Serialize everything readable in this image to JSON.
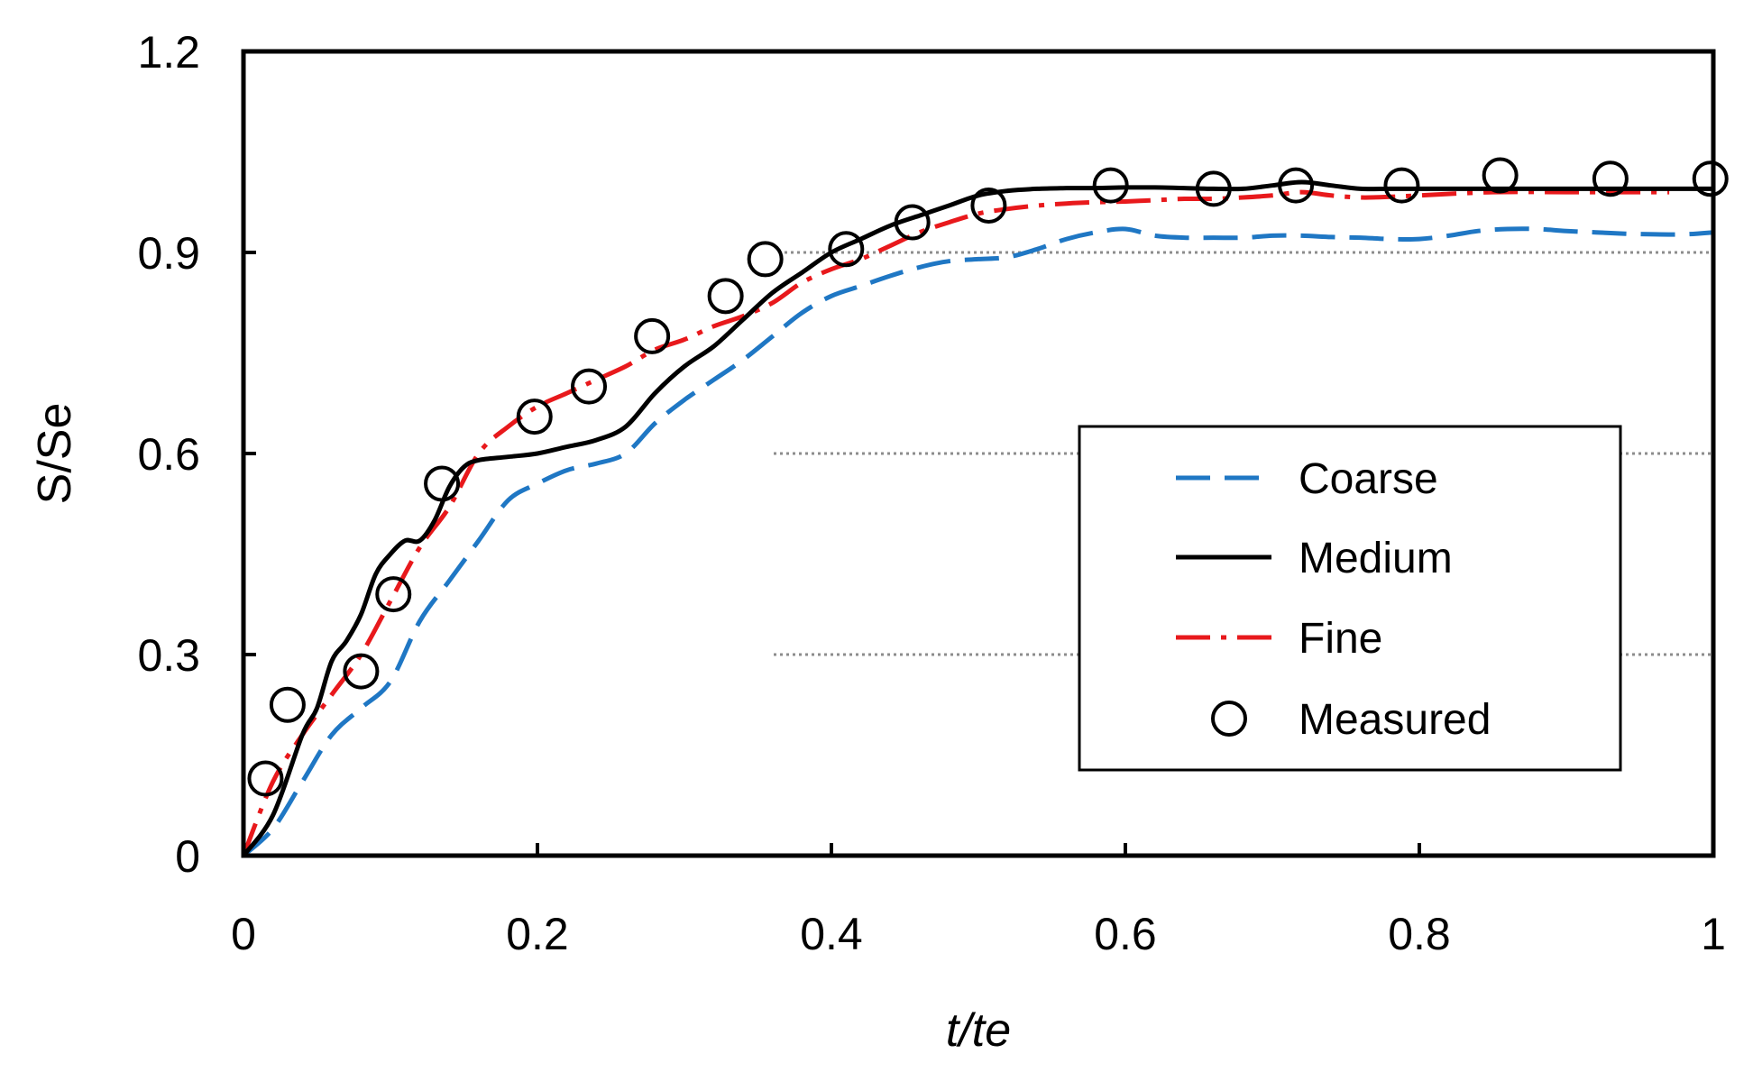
{
  "chart_data": {
    "type": "line",
    "title": "",
    "xlabel": "t/te",
    "ylabel": "S/Se",
    "xlim": [
      0,
      1
    ],
    "ylim": [
      0,
      1.2
    ],
    "xticks": [
      0,
      0.2,
      0.4,
      0.6,
      0.8,
      1
    ],
    "yticks": [
      0,
      0.3,
      0.6,
      0.9,
      1.2
    ],
    "x_tick_labels": [
      "0",
      "0.2",
      "0.4",
      "0.6",
      "0.8",
      "1"
    ],
    "y_tick_labels": [
      "0",
      "0.3",
      "0.6",
      "0.9",
      "1.2"
    ],
    "gridlines_y": [
      0.3,
      0.6,
      0.9
    ],
    "legend_position": "center-right",
    "series": [
      {
        "name": "Coarse",
        "style": "dashed",
        "color": "#1f77c4",
        "x": [
          0,
          0.02,
          0.04,
          0.06,
          0.08,
          0.1,
          0.12,
          0.14,
          0.16,
          0.18,
          0.2,
          0.22,
          0.24,
          0.26,
          0.28,
          0.3,
          0.32,
          0.34,
          0.36,
          0.38,
          0.4,
          0.42,
          0.44,
          0.46,
          0.48,
          0.5,
          0.52,
          0.54,
          0.56,
          0.58,
          0.6,
          0.62,
          0.64,
          0.66,
          0.68,
          0.7,
          0.72,
          0.74,
          0.76,
          0.78,
          0.8,
          0.82,
          0.84,
          0.86,
          0.88,
          0.9,
          0.92,
          0.94,
          0.96,
          0.98,
          1.0
        ],
        "y": [
          0,
          0.04,
          0.11,
          0.18,
          0.22,
          0.26,
          0.35,
          0.41,
          0.47,
          0.53,
          0.555,
          0.575,
          0.585,
          0.6,
          0.645,
          0.68,
          0.71,
          0.74,
          0.775,
          0.81,
          0.835,
          0.85,
          0.865,
          0.878,
          0.887,
          0.89,
          0.893,
          0.905,
          0.92,
          0.93,
          0.935,
          0.925,
          0.922,
          0.922,
          0.922,
          0.925,
          0.925,
          0.923,
          0.922,
          0.92,
          0.92,
          0.925,
          0.932,
          0.935,
          0.935,
          0.932,
          0.93,
          0.928,
          0.927,
          0.927,
          0.93
        ]
      },
      {
        "name": "Medium",
        "style": "solid",
        "color": "#000000",
        "x": [
          0,
          0.02,
          0.04,
          0.05,
          0.06,
          0.07,
          0.08,
          0.09,
          0.1,
          0.11,
          0.12,
          0.13,
          0.14,
          0.15,
          0.16,
          0.18,
          0.2,
          0.22,
          0.24,
          0.26,
          0.28,
          0.3,
          0.32,
          0.34,
          0.36,
          0.38,
          0.4,
          0.42,
          0.44,
          0.46,
          0.48,
          0.5,
          0.52,
          0.54,
          0.56,
          0.58,
          0.6,
          0.62,
          0.64,
          0.66,
          0.68,
          0.7,
          0.72,
          0.74,
          0.76,
          0.78,
          0.8,
          0.85,
          0.9,
          0.95,
          1.0
        ],
        "y": [
          0,
          0.06,
          0.18,
          0.22,
          0.29,
          0.32,
          0.36,
          0.42,
          0.45,
          0.47,
          0.47,
          0.5,
          0.55,
          0.58,
          0.59,
          0.595,
          0.6,
          0.61,
          0.62,
          0.64,
          0.69,
          0.73,
          0.76,
          0.8,
          0.84,
          0.87,
          0.9,
          0.92,
          0.94,
          0.955,
          0.97,
          0.985,
          0.992,
          0.995,
          0.996,
          0.996,
          0.997,
          0.997,
          0.996,
          0.995,
          0.995,
          1.0,
          1.005,
          1.0,
          0.995,
          0.995,
          0.995,
          0.995,
          0.995,
          0.995,
          0.995
        ]
      },
      {
        "name": "Fine",
        "style": "dash-dot",
        "color": "#e8191c",
        "x": [
          0,
          0.02,
          0.04,
          0.06,
          0.08,
          0.1,
          0.12,
          0.14,
          0.16,
          0.18,
          0.2,
          0.22,
          0.24,
          0.26,
          0.28,
          0.3,
          0.32,
          0.34,
          0.36,
          0.38,
          0.4,
          0.42,
          0.44,
          0.46,
          0.48,
          0.5,
          0.52,
          0.54,
          0.56,
          0.58,
          0.6,
          0.62,
          0.64,
          0.66,
          0.68,
          0.7,
          0.72,
          0.74,
          0.76,
          0.78,
          0.8,
          0.85,
          0.9,
          0.95,
          0.97
        ],
        "y": [
          0,
          0.11,
          0.18,
          0.24,
          0.3,
          0.38,
          0.46,
          0.52,
          0.6,
          0.64,
          0.67,
          0.69,
          0.71,
          0.73,
          0.755,
          0.77,
          0.79,
          0.805,
          0.825,
          0.855,
          0.875,
          0.89,
          0.91,
          0.93,
          0.945,
          0.958,
          0.965,
          0.97,
          0.973,
          0.975,
          0.976,
          0.978,
          0.98,
          0.98,
          0.982,
          0.985,
          0.99,
          0.985,
          0.982,
          0.983,
          0.985,
          0.99,
          0.99,
          0.99,
          0.99
        ]
      },
      {
        "name": "Measured",
        "style": "markers",
        "color": "#000000",
        "x": [
          0.015,
          0.03,
          0.08,
          0.102,
          0.135,
          0.198,
          0.235,
          0.278,
          0.328,
          0.355,
          0.41,
          0.455,
          0.507,
          0.59,
          0.66,
          0.716,
          0.788,
          0.855,
          0.93,
          0.998
        ],
        "y": [
          0.115,
          0.225,
          0.275,
          0.39,
          0.555,
          0.655,
          0.7,
          0.775,
          0.835,
          0.89,
          0.905,
          0.945,
          0.97,
          1.0,
          0.995,
          1.0,
          1.0,
          1.015,
          1.01,
          1.01
        ]
      }
    ]
  }
}
